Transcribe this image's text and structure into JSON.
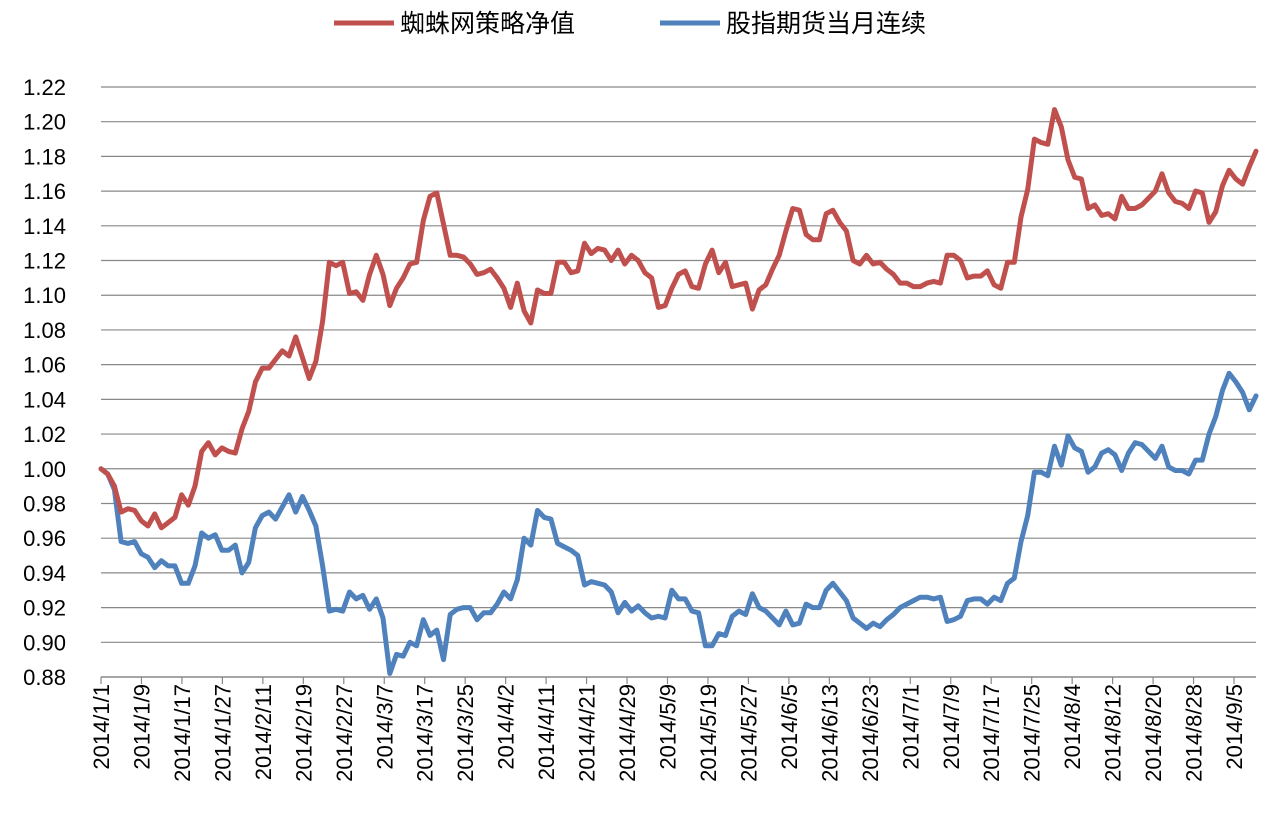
{
  "chart_data": {
    "type": "line",
    "title": "",
    "xlabel": "",
    "ylabel": "",
    "ylim": [
      0.88,
      1.22
    ],
    "y_ticks": [
      "0.88",
      "0.90",
      "0.92",
      "0.94",
      "0.96",
      "0.98",
      "1.00",
      "1.02",
      "1.04",
      "1.06",
      "1.08",
      "1.10",
      "1.12",
      "1.14",
      "1.16",
      "1.18",
      "1.20",
      "1.22"
    ],
    "x_ticks": [
      "2014/1/1",
      "2014/1/9",
      "2014/1/17",
      "2014/1/27",
      "2014/2/11",
      "2014/2/19",
      "2014/2/27",
      "2014/3/7",
      "2014/3/17",
      "2014/3/25",
      "2014/4/2",
      "2014/4/11",
      "2014/4/21",
      "2014/4/29",
      "2014/5/9",
      "2014/5/19",
      "2014/5/27",
      "2014/6/5",
      "2014/6/13",
      "2014/6/23",
      "2014/7/1",
      "2014/7/9",
      "2014/7/17",
      "2014/7/25",
      "2014/8/4",
      "2014/8/12",
      "2014/8/20",
      "2014/8/28",
      "2014/9/5"
    ],
    "grid": true,
    "legend_position": "top",
    "colors": {
      "strategy": "#C0504D",
      "futures": "#4F81BD"
    },
    "series": [
      {
        "name": "蜘蛛网策略净值",
        "values": [
          1.0,
          0.997,
          0.99,
          0.975,
          0.977,
          0.976,
          0.97,
          0.967,
          0.974,
          0.966,
          0.969,
          0.972,
          0.985,
          0.979,
          0.99,
          1.01,
          1.015,
          1.008,
          1.012,
          1.01,
          1.009,
          1.023,
          1.033,
          1.05,
          1.058,
          1.058,
          1.063,
          1.068,
          1.065,
          1.076,
          1.064,
          1.052,
          1.062,
          1.085,
          1.119,
          1.117,
          1.119,
          1.101,
          1.102,
          1.097,
          1.112,
          1.123,
          1.112,
          1.094,
          1.104,
          1.11,
          1.118,
          1.119,
          1.143,
          1.157,
          1.159,
          1.141,
          1.123,
          1.123,
          1.122,
          1.118,
          1.112,
          1.113,
          1.115,
          1.11,
          1.104,
          1.093,
          1.107,
          1.091,
          1.084,
          1.103,
          1.101,
          1.101,
          1.119,
          1.119,
          1.113,
          1.114,
          1.13,
          1.124,
          1.127,
          1.126,
          1.12,
          1.126,
          1.118,
          1.123,
          1.12,
          1.113,
          1.11,
          1.093,
          1.094,
          1.104,
          1.112,
          1.114,
          1.105,
          1.104,
          1.118,
          1.126,
          1.113,
          1.119,
          1.105,
          1.106,
          1.107,
          1.092,
          1.103,
          1.106,
          1.115,
          1.123,
          1.137,
          1.15,
          1.149,
          1.135,
          1.132,
          1.132,
          1.147,
          1.149,
          1.142,
          1.137,
          1.12,
          1.118,
          1.123,
          1.118,
          1.119,
          1.115,
          1.112,
          1.107,
          1.107,
          1.105,
          1.105,
          1.107,
          1.108,
          1.107,
          1.123,
          1.123,
          1.12,
          1.11,
          1.111,
          1.111,
          1.114,
          1.106,
          1.104,
          1.119,
          1.119,
          1.145,
          1.161,
          1.19,
          1.188,
          1.187,
          1.207,
          1.197,
          1.178,
          1.168,
          1.167,
          1.15,
          1.152,
          1.146,
          1.147,
          1.144,
          1.157,
          1.15,
          1.15,
          1.152,
          1.156,
          1.16,
          1.17,
          1.159,
          1.154,
          1.153,
          1.15,
          1.16,
          1.159,
          1.142,
          1.148,
          1.163,
          1.172,
          1.167,
          1.164,
          1.174,
          1.183
        ]
      },
      {
        "name": "股指期货当月连续",
        "values": [
          1.0,
          0.997,
          0.988,
          0.958,
          0.957,
          0.958,
          0.951,
          0.949,
          0.943,
          0.947,
          0.944,
          0.944,
          0.934,
          0.934,
          0.944,
          0.963,
          0.96,
          0.962,
          0.953,
          0.953,
          0.956,
          0.94,
          0.946,
          0.966,
          0.973,
          0.975,
          0.971,
          0.978,
          0.985,
          0.975,
          0.984,
          0.976,
          0.967,
          0.944,
          0.918,
          0.919,
          0.918,
          0.929,
          0.925,
          0.927,
          0.919,
          0.925,
          0.914,
          0.882,
          0.893,
          0.892,
          0.9,
          0.898,
          0.913,
          0.904,
          0.907,
          0.89,
          0.916,
          0.919,
          0.92,
          0.92,
          0.913,
          0.917,
          0.917,
          0.922,
          0.929,
          0.925,
          0.936,
          0.96,
          0.956,
          0.976,
          0.972,
          0.971,
          0.957,
          0.955,
          0.953,
          0.95,
          0.933,
          0.935,
          0.934,
          0.933,
          0.929,
          0.917,
          0.923,
          0.918,
          0.921,
          0.917,
          0.914,
          0.915,
          0.914,
          0.93,
          0.925,
          0.925,
          0.918,
          0.917,
          0.898,
          0.898,
          0.905,
          0.904,
          0.915,
          0.918,
          0.916,
          0.928,
          0.92,
          0.918,
          0.914,
          0.91,
          0.918,
          0.91,
          0.911,
          0.922,
          0.92,
          0.92,
          0.93,
          0.934,
          0.929,
          0.924,
          0.914,
          0.911,
          0.908,
          0.911,
          0.909,
          0.913,
          0.916,
          0.92,
          0.922,
          0.924,
          0.926,
          0.926,
          0.925,
          0.926,
          0.912,
          0.913,
          0.915,
          0.924,
          0.925,
          0.925,
          0.922,
          0.926,
          0.924,
          0.934,
          0.937,
          0.958,
          0.973,
          0.998,
          0.998,
          0.996,
          1.013,
          1.002,
          1.019,
          1.012,
          1.01,
          0.998,
          1.001,
          1.009,
          1.011,
          1.008,
          0.999,
          1.009,
          1.015,
          1.014,
          1.01,
          1.006,
          1.013,
          1.001,
          0.999,
          0.999,
          0.997,
          1.005,
          1.005,
          1.02,
          1.03,
          1.045,
          1.055,
          1.05,
          1.044,
          1.034,
          1.042
        ]
      }
    ]
  }
}
